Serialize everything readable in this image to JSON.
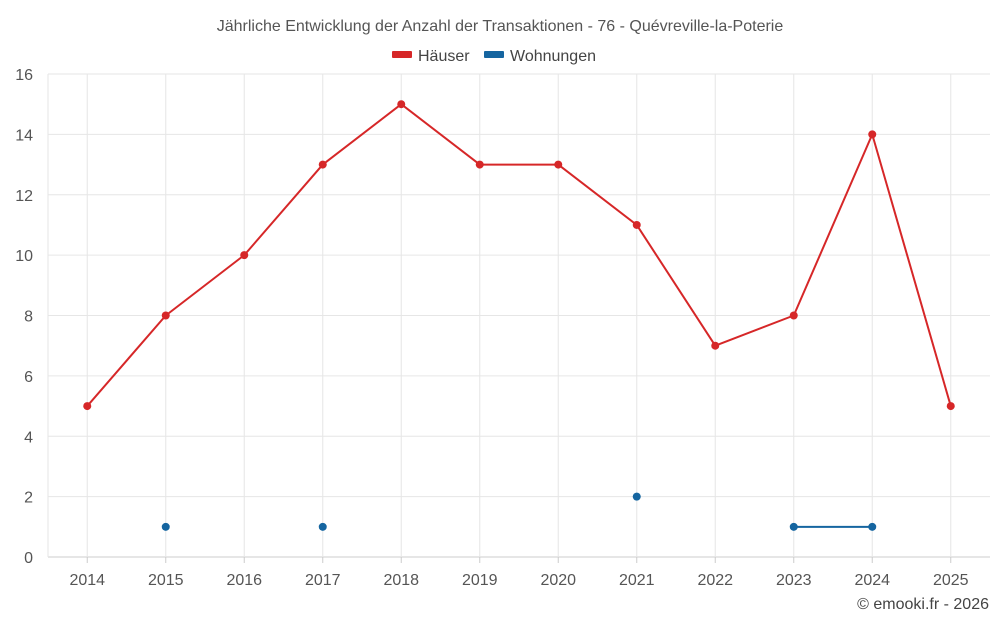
{
  "chart_data": {
    "type": "line",
    "title": "Jährliche Entwicklung der Anzahl der Transaktionen - 76 - Quévreville-la-Poterie",
    "xlabel": "",
    "ylabel": "",
    "categories": [
      "2014",
      "2015",
      "2016",
      "2017",
      "2018",
      "2019",
      "2020",
      "2021",
      "2022",
      "2023",
      "2024",
      "2025"
    ],
    "ylim": [
      0,
      16
    ],
    "yticks": [
      "0",
      "2",
      "4",
      "6",
      "8",
      "10",
      "12",
      "14",
      "16"
    ],
    "grid": true,
    "legend_position": "top-center",
    "series": [
      {
        "name": "Häuser",
        "color": "#d62728",
        "values": [
          5,
          8,
          10,
          13,
          15,
          13,
          13,
          11,
          7,
          8,
          14,
          5
        ]
      },
      {
        "name": "Wohnungen",
        "color": "#1565a0",
        "values": [
          null,
          1,
          null,
          1,
          null,
          null,
          null,
          2,
          null,
          1,
          1,
          null
        ]
      }
    ]
  },
  "credit": "© emooki.fr - 2026"
}
